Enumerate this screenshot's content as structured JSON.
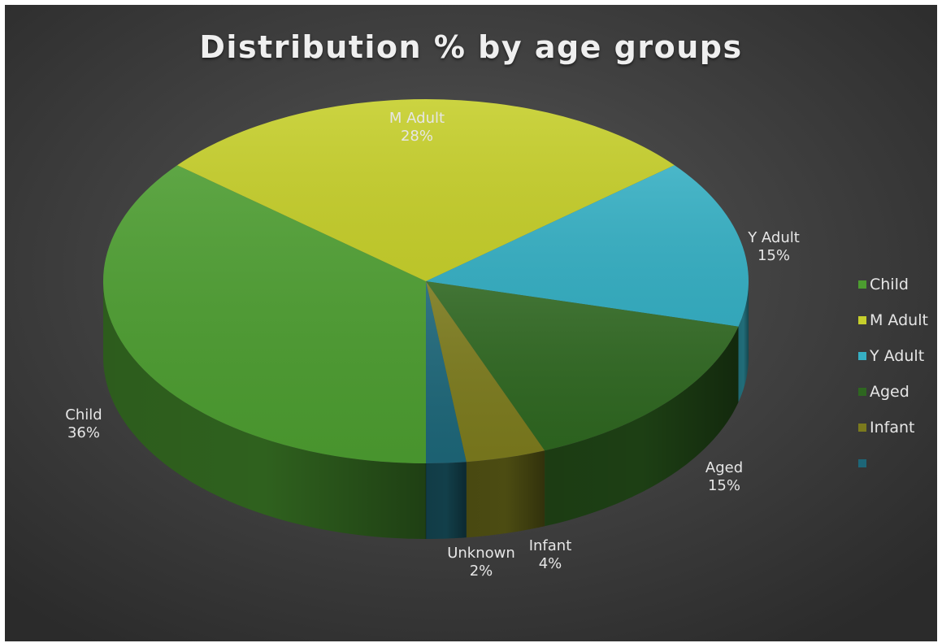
{
  "chart_data": {
    "type": "pie",
    "title": "Distribution % by age groups",
    "slices": [
      {
        "name": "Child",
        "value": 36,
        "label": "Child",
        "pct_label": "36%",
        "color": "#4c9c30"
      },
      {
        "name": "M Adult",
        "value": 28,
        "label": "M Adult",
        "pct_label": "28%",
        "color": "#c6cf2c"
      },
      {
        "name": "Y Adult",
        "value": 15,
        "label": "Y Adult",
        "pct_label": "15%",
        "color": "#36afc3"
      },
      {
        "name": "Aged",
        "value": 15,
        "label": "Aged",
        "pct_label": "15%",
        "color": "#2e6620"
      },
      {
        "name": "Infant",
        "value": 4,
        "label": "Infant",
        "pct_label": "4%",
        "color": "#7b7a1d"
      },
      {
        "name": "Unknown",
        "value": 2,
        "label": "Unknown",
        "pct_label": "2%",
        "color": "#1d6678"
      }
    ],
    "legend": {
      "position": "right",
      "entries": [
        {
          "label": "Child",
          "color": "#4c9c30"
        },
        {
          "label": "M Adult",
          "color": "#c6cf2c"
        },
        {
          "label": "Y Adult",
          "color": "#36afc3"
        },
        {
          "label": "Aged",
          "color": "#2e6620"
        },
        {
          "label": "Infant",
          "color": "#7b7a1d"
        },
        {
          "label": "",
          "color": "#1d6678"
        }
      ]
    }
  }
}
